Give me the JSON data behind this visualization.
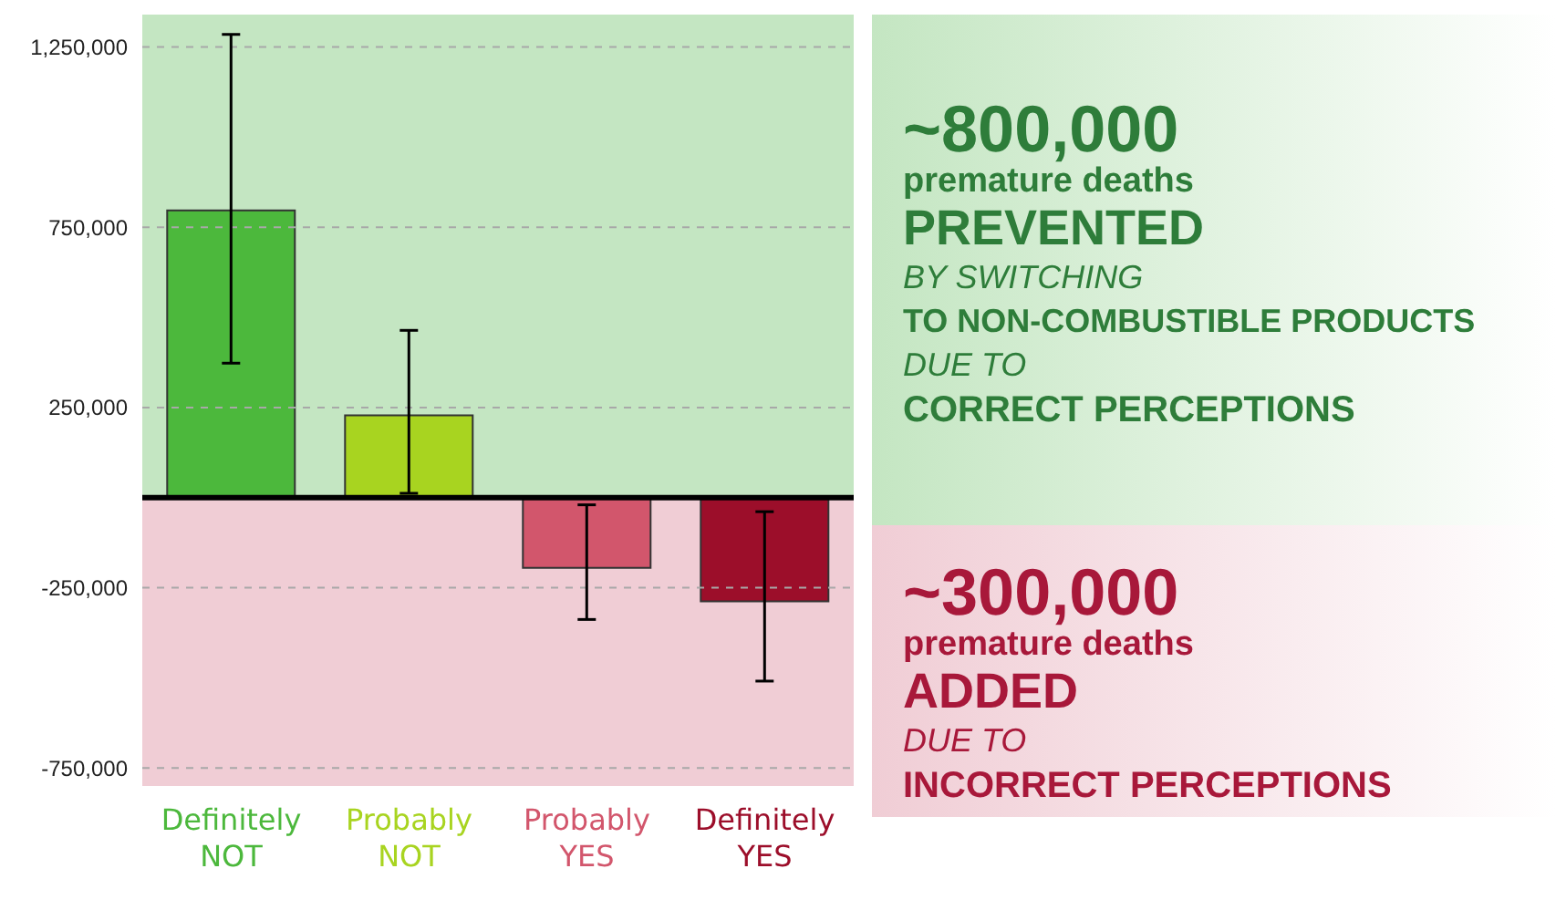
{
  "chart_data": {
    "type": "bar",
    "categories": [
      "Definitely NOT",
      "Probably NOT",
      "Probably YES",
      "Definitely YES"
    ],
    "values": [
      797000,
      228000,
      -195000,
      -288000
    ],
    "colors": [
      "#4cb83c",
      "#a8d420",
      "#d2566c",
      "#9c0e2a"
    ],
    "errors": [
      [
        373000,
        1285000
      ],
      [
        12000,
        464000
      ],
      [
        -338000,
        -20000
      ],
      [
        -509000,
        -39000
      ]
    ],
    "ylim": [
      -800000,
      1340000
    ],
    "yticks": [
      {
        "value": 1250000,
        "label": "1,250,000"
      },
      {
        "value": 750000,
        "label": "750,000"
      },
      {
        "value": 250000,
        "label": "250,000"
      },
      {
        "value": -250000,
        "label": "-250,000"
      },
      {
        "value": -750000,
        "label": "-750,000"
      }
    ],
    "grid": "y",
    "ref_lines": [
      {
        "axis": "y",
        "value": 0,
        "color": "#000000"
      }
    ],
    "bands": [
      {
        "axis": "y",
        "from": 0,
        "to": 1340000,
        "color": "#c4e6c2"
      },
      {
        "axis": "y",
        "from": -800000,
        "to": 0,
        "color": "#f0cdd5"
      }
    ],
    "annotations": [
      "~800,000",
      "premature deaths",
      "PREVENTED",
      "BY SWITCHING",
      "TO NON-COMBUSTIBLE PRODUCTS",
      "DUE TO",
      "CORRECT PERCEPTIONS",
      "~300,000",
      "premature deaths",
      "ADDED",
      "DUE TO",
      "INCORRECT PERCEPTIONS"
    ]
  }
}
